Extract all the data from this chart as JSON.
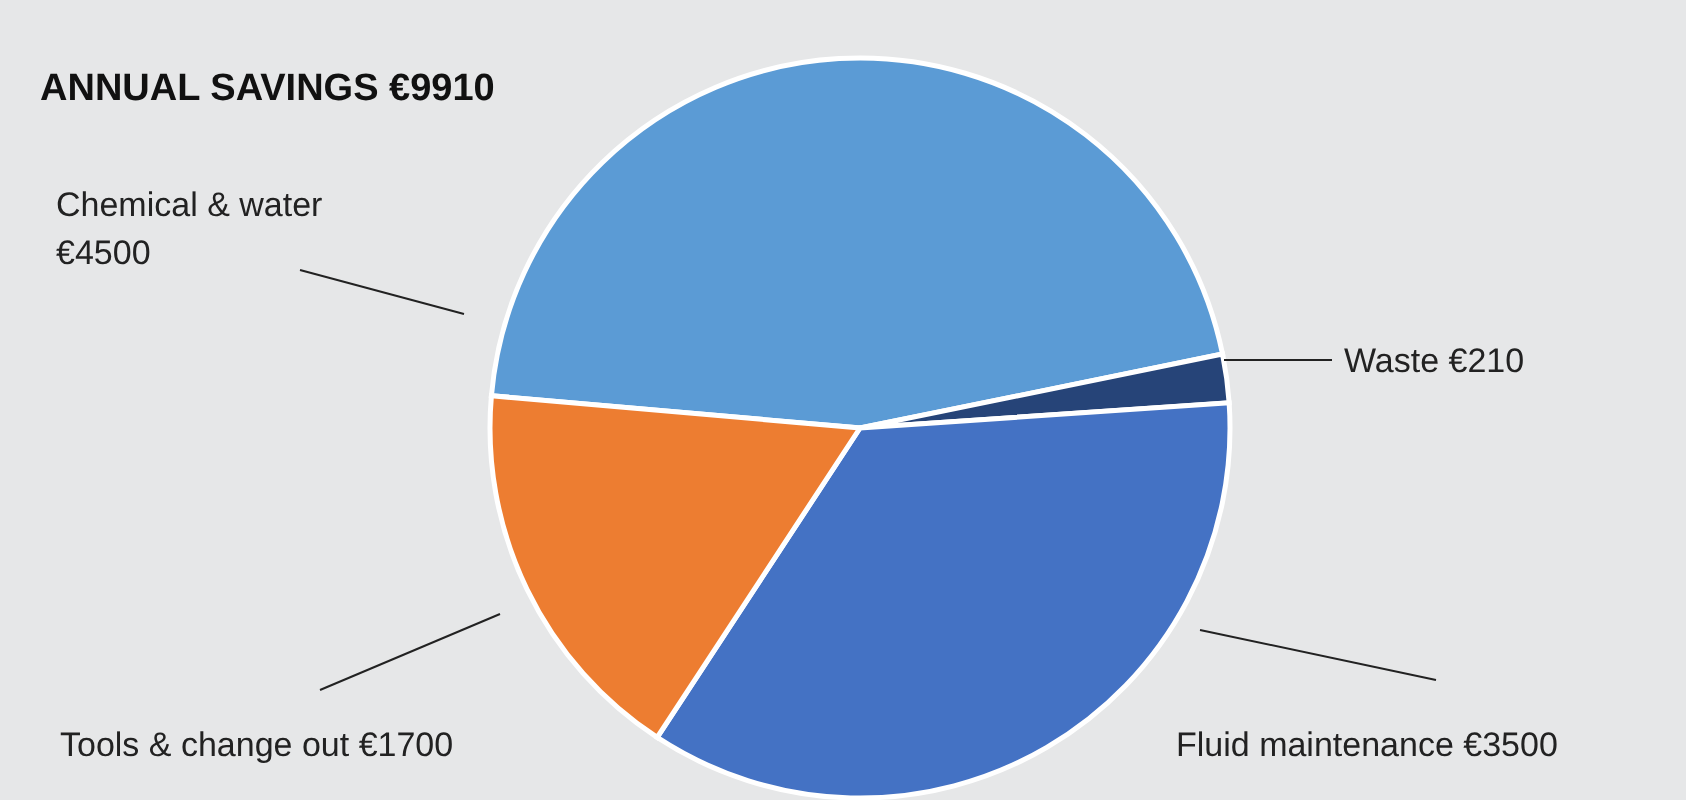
{
  "chart_data": {
    "type": "pie",
    "title": "ANNUAL SAVINGS €9910",
    "categories": [
      "Chemical & water",
      "Waste",
      "Fluid maintenance",
      "Tools & change out"
    ],
    "values": [
      4500,
      210,
      3500,
      1700
    ],
    "value_labels": [
      "€4500",
      "€210",
      "€3500",
      "€1700"
    ],
    "colors": [
      "#5b9bd5",
      "#264478",
      "#4472c4",
      "#ed7d31"
    ],
    "legend": false
  }
}
